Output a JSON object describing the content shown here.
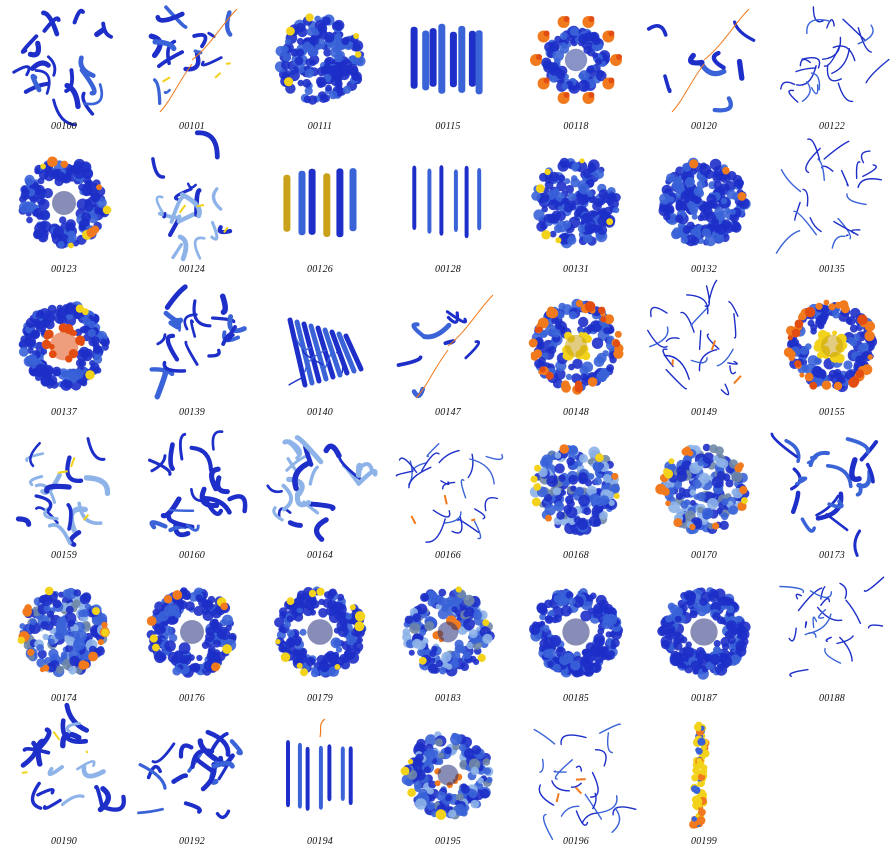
{
  "grid": {
    "columns": 7,
    "items": [
      {
        "id": "00100",
        "style": "ribbon-complex"
      },
      {
        "id": "00101",
        "style": "ribbon-tails"
      },
      {
        "id": "00111",
        "style": "surface-blob"
      },
      {
        "id": "00115",
        "style": "helix-bundle"
      },
      {
        "id": "00118",
        "style": "ring-spikes"
      },
      {
        "id": "00120",
        "style": "small-tails"
      },
      {
        "id": "00122",
        "style": "ribbon-outline"
      },
      {
        "id": "00123",
        "style": "surface-ring"
      },
      {
        "id": "00124",
        "style": "ribbon-light"
      },
      {
        "id": "00126",
        "style": "helix-bundle-gold"
      },
      {
        "id": "00128",
        "style": "helix-thin"
      },
      {
        "id": "00131",
        "style": "surface-blob"
      },
      {
        "id": "00132",
        "style": "surface-blob-dense"
      },
      {
        "id": "00135",
        "style": "ribbon-outline"
      },
      {
        "id": "00137",
        "style": "surface-ring-orange"
      },
      {
        "id": "00139",
        "style": "ribbon-complex"
      },
      {
        "id": "00140",
        "style": "beta-sheet"
      },
      {
        "id": "00147",
        "style": "small-tails"
      },
      {
        "id": "00148",
        "style": "ring-orange-gold"
      },
      {
        "id": "00149",
        "style": "ribbon-ring"
      },
      {
        "id": "00155",
        "style": "ring-orange-gold"
      },
      {
        "id": "00159",
        "style": "ribbon-light"
      },
      {
        "id": "00160",
        "style": "ribbon-complex"
      },
      {
        "id": "00164",
        "style": "ribbon-dimer"
      },
      {
        "id": "00166",
        "style": "ribbon-ring"
      },
      {
        "id": "00168",
        "style": "surface-blob-mixed"
      },
      {
        "id": "00170",
        "style": "surface-orange-mixed"
      },
      {
        "id": "00173",
        "style": "ribbon-complex"
      },
      {
        "id": "00174",
        "style": "surface-orange-mixed"
      },
      {
        "id": "00176",
        "style": "surface-ring"
      },
      {
        "id": "00179",
        "style": "surface-ring-yellow"
      },
      {
        "id": "00183",
        "style": "surface-ring-mixed"
      },
      {
        "id": "00185",
        "style": "surface-ring-blue"
      },
      {
        "id": "00187",
        "style": "surface-ring-blue"
      },
      {
        "id": "00188",
        "style": "ribbon-outline"
      },
      {
        "id": "00190",
        "style": "ribbon-light"
      },
      {
        "id": "00192",
        "style": "ribbon-complex"
      },
      {
        "id": "00194",
        "style": "helix-thin-tails"
      },
      {
        "id": "00195",
        "style": "surface-ring-mixed"
      },
      {
        "id": "00196",
        "style": "ribbon-ring"
      },
      {
        "id": "00199",
        "style": "fibril"
      }
    ]
  },
  "colors": {
    "blue_dark": "#1d2fc8",
    "blue_mid": "#3a63d8",
    "blue_light": "#8db3e8",
    "yellow": "#f2d21b",
    "orange": "#f07a1d",
    "red_orange": "#e24e12",
    "gold": "#c9a21a",
    "gray_blue": "#6f87a6"
  }
}
